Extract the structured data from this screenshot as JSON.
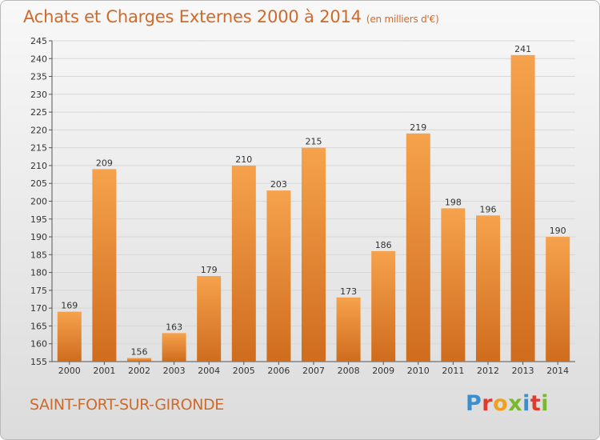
{
  "title": "Achats et Charges Externes 2000 à 2014",
  "subtitle": "(en milliers d'€)",
  "location": "SAINT-FORT-SUR-GIRONDE",
  "logo": {
    "letters": [
      "P",
      "r",
      "o",
      "x",
      "i",
      "t",
      "i"
    ],
    "colors": [
      "#3a8fd0",
      "#e23b2e",
      "#f0a020",
      "#7ab82c",
      "#3a8fd0",
      "#e23b2e",
      "#7ab82c"
    ]
  },
  "colors": {
    "accent": "#d06a28",
    "bar_top": "#f6a24c",
    "bar_bottom": "#cf6c1e",
    "grid": "#d7d7d7"
  },
  "chart_data": {
    "type": "bar",
    "title": "Achats et Charges Externes 2000 à 2014",
    "subtitle": "(en milliers d'€)",
    "categories": [
      "2000",
      "2001",
      "2002",
      "2003",
      "2004",
      "2005",
      "2006",
      "2007",
      "2008",
      "2009",
      "2010",
      "2011",
      "2012",
      "2013",
      "2014"
    ],
    "values": [
      169,
      209,
      156,
      163,
      179,
      210,
      203,
      215,
      173,
      186,
      219,
      198,
      196,
      241,
      190
    ],
    "ylim": [
      155,
      245
    ],
    "yticks": [
      155,
      160,
      165,
      170,
      175,
      180,
      185,
      190,
      195,
      200,
      205,
      210,
      215,
      220,
      225,
      230,
      235,
      240,
      245
    ],
    "grid": true,
    "legend": "none",
    "data_labels": true
  }
}
